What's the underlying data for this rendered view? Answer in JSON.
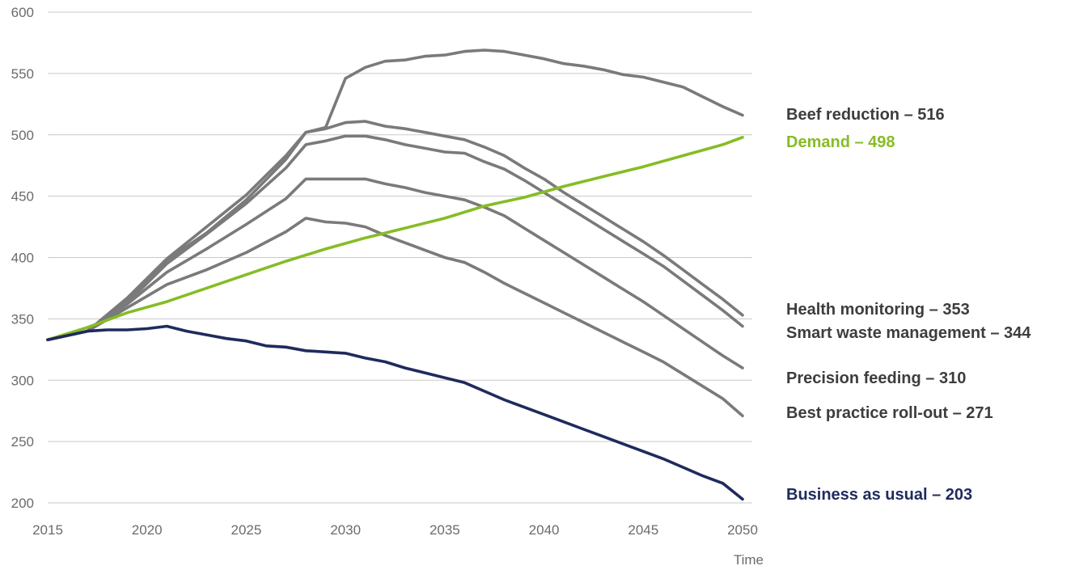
{
  "chart_data": {
    "type": "line",
    "xlabel": "Time",
    "ylabel": "",
    "xlim": [
      2015,
      2050
    ],
    "ylim": [
      200,
      600
    ],
    "x_ticks": [
      "2015",
      "2020",
      "2025",
      "2030",
      "2035",
      "2040",
      "2045",
      "2050"
    ],
    "y_ticks": [
      "200",
      "250",
      "300",
      "350",
      "400",
      "450",
      "500",
      "550",
      "600"
    ],
    "grid": "horizontal",
    "series": [
      {
        "label": "Beef reduction – 516",
        "color": "#7a7a7a",
        "points": [
          [
            2015,
            333
          ],
          [
            2017,
            340
          ],
          [
            2019,
            365
          ],
          [
            2021,
            398
          ],
          [
            2023,
            420
          ],
          [
            2025,
            447
          ],
          [
            2027,
            480
          ],
          [
            2028,
            502
          ],
          [
            2029,
            506
          ],
          [
            2030,
            546
          ],
          [
            2031,
            555
          ],
          [
            2032,
            560
          ],
          [
            2033,
            561
          ],
          [
            2034,
            564
          ],
          [
            2035,
            565
          ],
          [
            2036,
            568
          ],
          [
            2037,
            569
          ],
          [
            2038,
            568
          ],
          [
            2039,
            565
          ],
          [
            2040,
            562
          ],
          [
            2041,
            558
          ],
          [
            2042,
            556
          ],
          [
            2043,
            553
          ],
          [
            2044,
            549
          ],
          [
            2045,
            547
          ],
          [
            2046,
            543
          ],
          [
            2047,
            539
          ],
          [
            2048,
            531
          ],
          [
            2049,
            523
          ],
          [
            2050,
            516
          ]
        ]
      },
      {
        "label": "Health monitoring – 353",
        "color": "#7a7a7a",
        "points": [
          [
            2015,
            333
          ],
          [
            2017,
            340
          ],
          [
            2019,
            367
          ],
          [
            2021,
            399
          ],
          [
            2023,
            425
          ],
          [
            2025,
            451
          ],
          [
            2027,
            483
          ],
          [
            2028,
            502
          ],
          [
            2029,
            505
          ],
          [
            2030,
            510
          ],
          [
            2031,
            511
          ],
          [
            2032,
            507
          ],
          [
            2033,
            505
          ],
          [
            2034,
            502
          ],
          [
            2035,
            499
          ],
          [
            2036,
            496
          ],
          [
            2037,
            490
          ],
          [
            2038,
            483
          ],
          [
            2039,
            473
          ],
          [
            2040,
            464
          ],
          [
            2041,
            453
          ],
          [
            2042,
            443
          ],
          [
            2043,
            433
          ],
          [
            2044,
            423
          ],
          [
            2045,
            413
          ],
          [
            2046,
            402
          ],
          [
            2047,
            390
          ],
          [
            2048,
            378
          ],
          [
            2049,
            366
          ],
          [
            2050,
            353
          ]
        ]
      },
      {
        "label": "Smart waste management  – 344",
        "color": "#7a7a7a",
        "points": [
          [
            2015,
            333
          ],
          [
            2017,
            340
          ],
          [
            2019,
            363
          ],
          [
            2021,
            395
          ],
          [
            2023,
            419
          ],
          [
            2025,
            444
          ],
          [
            2027,
            473
          ],
          [
            2028,
            492
          ],
          [
            2029,
            495
          ],
          [
            2030,
            499
          ],
          [
            2031,
            499
          ],
          [
            2032,
            496
          ],
          [
            2033,
            492
          ],
          [
            2034,
            489
          ],
          [
            2035,
            486
          ],
          [
            2036,
            485
          ],
          [
            2037,
            478
          ],
          [
            2038,
            472
          ],
          [
            2039,
            463
          ],
          [
            2040,
            453
          ],
          [
            2041,
            443
          ],
          [
            2042,
            433
          ],
          [
            2043,
            423
          ],
          [
            2044,
            413
          ],
          [
            2045,
            403
          ],
          [
            2046,
            393
          ],
          [
            2047,
            381
          ],
          [
            2048,
            369
          ],
          [
            2049,
            357
          ],
          [
            2050,
            344
          ]
        ]
      },
      {
        "label": "Precision feeding – 310",
        "color": "#7a7a7a",
        "points": [
          [
            2015,
            333
          ],
          [
            2017,
            340
          ],
          [
            2019,
            362
          ],
          [
            2021,
            388
          ],
          [
            2023,
            407
          ],
          [
            2025,
            427
          ],
          [
            2027,
            448
          ],
          [
            2028,
            464
          ],
          [
            2029,
            464
          ],
          [
            2030,
            464
          ],
          [
            2031,
            464
          ],
          [
            2032,
            460
          ],
          [
            2033,
            457
          ],
          [
            2034,
            453
          ],
          [
            2035,
            450
          ],
          [
            2036,
            447
          ],
          [
            2037,
            441
          ],
          [
            2038,
            434
          ],
          [
            2039,
            424
          ],
          [
            2040,
            414
          ],
          [
            2041,
            404
          ],
          [
            2042,
            394
          ],
          [
            2043,
            384
          ],
          [
            2044,
            374
          ],
          [
            2045,
            364
          ],
          [
            2046,
            353
          ],
          [
            2047,
            342
          ],
          [
            2048,
            331
          ],
          [
            2049,
            320
          ],
          [
            2050,
            310
          ]
        ]
      },
      {
        "label": "Best practice roll-out – 271",
        "color": "#7a7a7a",
        "points": [
          [
            2015,
            333
          ],
          [
            2017,
            340
          ],
          [
            2019,
            359
          ],
          [
            2021,
            378
          ],
          [
            2023,
            390
          ],
          [
            2025,
            404
          ],
          [
            2027,
            421
          ],
          [
            2028,
            432
          ],
          [
            2029,
            429
          ],
          [
            2030,
            428
          ],
          [
            2031,
            425
          ],
          [
            2032,
            418
          ],
          [
            2033,
            412
          ],
          [
            2034,
            406
          ],
          [
            2035,
            400
          ],
          [
            2036,
            396
          ],
          [
            2037,
            388
          ],
          [
            2038,
            379
          ],
          [
            2039,
            371
          ],
          [
            2040,
            363
          ],
          [
            2041,
            355
          ],
          [
            2042,
            347
          ],
          [
            2043,
            339
          ],
          [
            2044,
            331
          ],
          [
            2045,
            323
          ],
          [
            2046,
            315
          ],
          [
            2047,
            305
          ],
          [
            2048,
            295
          ],
          [
            2049,
            285
          ],
          [
            2050,
            271
          ]
        ]
      },
      {
        "label": "Demand – 498",
        "color": "#86bc25",
        "points": [
          [
            2015,
            333
          ],
          [
            2017,
            343
          ],
          [
            2019,
            355
          ],
          [
            2021,
            364
          ],
          [
            2023,
            375
          ],
          [
            2025,
            386
          ],
          [
            2027,
            397
          ],
          [
            2029,
            407
          ],
          [
            2031,
            416
          ],
          [
            2033,
            424
          ],
          [
            2035,
            432
          ],
          [
            2037,
            442
          ],
          [
            2039,
            449
          ],
          [
            2041,
            458
          ],
          [
            2043,
            466
          ],
          [
            2045,
            474
          ],
          [
            2047,
            483
          ],
          [
            2049,
            492
          ],
          [
            2050,
            498
          ]
        ]
      },
      {
        "label": "Business as usual – 203",
        "color": "#1f2b5e",
        "points": [
          [
            2015,
            333
          ],
          [
            2017,
            340
          ],
          [
            2018,
            341
          ],
          [
            2019,
            341
          ],
          [
            2020,
            342
          ],
          [
            2021,
            344
          ],
          [
            2022,
            340
          ],
          [
            2023,
            337
          ],
          [
            2024,
            334
          ],
          [
            2025,
            332
          ],
          [
            2026,
            328
          ],
          [
            2027,
            327
          ],
          [
            2028,
            324
          ],
          [
            2029,
            323
          ],
          [
            2030,
            322
          ],
          [
            2031,
            318
          ],
          [
            2032,
            315
          ],
          [
            2033,
            310
          ],
          [
            2034,
            306
          ],
          [
            2035,
            302
          ],
          [
            2036,
            298
          ],
          [
            2037,
            291
          ],
          [
            2038,
            284
          ],
          [
            2039,
            278
          ],
          [
            2040,
            272
          ],
          [
            2041,
            266
          ],
          [
            2042,
            260
          ],
          [
            2043,
            254
          ],
          [
            2044,
            248
          ],
          [
            2045,
            242
          ],
          [
            2046,
            236
          ],
          [
            2047,
            229
          ],
          [
            2048,
            222
          ],
          [
            2049,
            216
          ],
          [
            2050,
            203
          ]
        ]
      }
    ],
    "end_labels": [
      {
        "text": "Beef reduction – 516",
        "color": "#3d3d3d"
      },
      {
        "text": "Demand – 498",
        "color": "#86bc25"
      },
      {
        "text": "Health monitoring – 353",
        "color": "#3d3d3d"
      },
      {
        "text": "Smart waste management  – 344",
        "color": "#3d3d3d"
      },
      {
        "text": "Precision feeding – 310",
        "color": "#3d3d3d"
      },
      {
        "text": "Best practice roll-out – 271",
        "color": "#3d3d3d"
      },
      {
        "text": "Business as usual – 203",
        "color": "#1f2b5e"
      }
    ]
  }
}
